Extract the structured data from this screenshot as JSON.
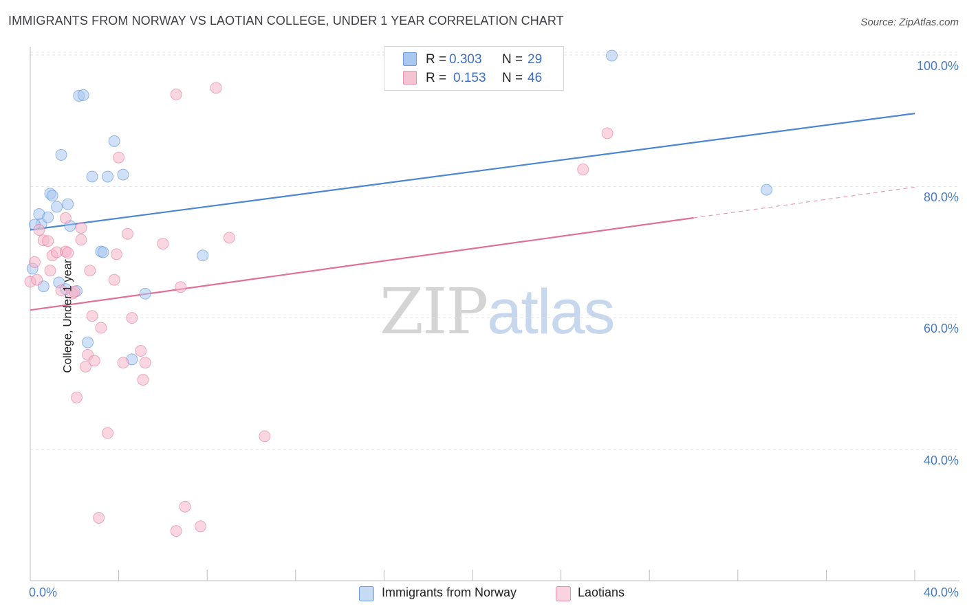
{
  "header": {
    "title": "IMMIGRANTS FROM NORWAY VS LAOTIAN COLLEGE, UNDER 1 YEAR CORRELATION CHART",
    "source": "Source: ZipAtlas.com"
  },
  "watermark": {
    "part1": "ZIP",
    "part2": "atlas"
  },
  "legend": {
    "rows": [
      {
        "r_label": "R =",
        "r_value": "0.303",
        "n_label": "N =",
        "n_value": "29",
        "color": "#a9c8f0"
      },
      {
        "r_label": "R =",
        "r_value": "0.153",
        "n_label": "N =",
        "n_value": "46",
        "color": "#f5b5c8"
      }
    ]
  },
  "bottom_legend": {
    "items": [
      {
        "label": "Immigrants from Norway",
        "color": "#a9c8f0"
      },
      {
        "label": "Laotians",
        "color": "#f5b5c8"
      }
    ]
  },
  "chart_data": {
    "type": "scatter",
    "title": "IMMIGRANTS FROM NORWAY VS LAOTIAN COLLEGE, UNDER 1 YEAR CORRELATION CHART",
    "xlabel": "",
    "ylabel": "College, Under 1 year",
    "xlim": [
      0,
      40
    ],
    "ylim": [
      20,
      102
    ],
    "x_tick_labels": [
      "0.0%",
      "40.0%"
    ],
    "y_ticks": [
      40,
      60,
      80,
      100
    ],
    "y_tick_labels": [
      "40.0%",
      "60.0%",
      "80.0%",
      "100.0%"
    ],
    "grid": true,
    "legend_position": "top-center",
    "series": [
      {
        "name": "Immigrants from Norway",
        "color": "#4a86d4",
        "fill": "#a9c8f0",
        "trend": {
          "x": [
            0,
            40
          ],
          "y": [
            73.4,
            91.1
          ],
          "dashed_from": null
        },
        "points": [
          [
            0.1,
            67.5
          ],
          [
            0.4,
            75.8
          ],
          [
            0.5,
            74.3
          ],
          [
            0.6,
            64.8
          ],
          [
            0.8,
            75.3
          ],
          [
            0.9,
            78.9
          ],
          [
            1.0,
            78.6
          ],
          [
            1.2,
            76.9
          ],
          [
            1.3,
            65.4
          ],
          [
            1.4,
            84.8
          ],
          [
            1.6,
            64.4
          ],
          [
            1.7,
            77.3
          ],
          [
            1.8,
            74.0
          ],
          [
            2.1,
            64.1
          ],
          [
            2.2,
            93.8
          ],
          [
            2.4,
            93.9
          ],
          [
            2.6,
            56.3
          ],
          [
            2.8,
            81.5
          ],
          [
            3.2,
            70.1
          ],
          [
            3.3,
            70.0
          ],
          [
            3.5,
            81.5
          ],
          [
            3.8,
            86.9
          ],
          [
            4.2,
            81.8
          ],
          [
            4.6,
            53.7
          ],
          [
            5.2,
            63.7
          ],
          [
            7.8,
            69.5
          ],
          [
            26.3,
            99.9
          ],
          [
            33.3,
            79.5
          ],
          [
            0.2,
            74.2
          ]
        ]
      },
      {
        "name": "Laotians",
        "color": "#e07098",
        "fill": "#f5b5c8",
        "trend": {
          "x": [
            0,
            40
          ],
          "y": [
            61.2,
            79.9
          ],
          "dashed_from": 30
        },
        "points": [
          [
            0.0,
            65.5
          ],
          [
            0.2,
            68.5
          ],
          [
            0.4,
            73.4
          ],
          [
            0.6,
            71.8
          ],
          [
            0.8,
            71.7
          ],
          [
            0.9,
            67.2
          ],
          [
            1.0,
            69.5
          ],
          [
            1.2,
            70.0
          ],
          [
            1.4,
            64.2
          ],
          [
            1.6,
            70.1
          ],
          [
            1.6,
            75.2
          ],
          [
            1.7,
            69.9
          ],
          [
            1.9,
            63.7
          ],
          [
            2.0,
            64.0
          ],
          [
            2.1,
            47.9
          ],
          [
            2.3,
            73.7
          ],
          [
            2.3,
            71.9
          ],
          [
            2.5,
            52.6
          ],
          [
            2.6,
            54.4
          ],
          [
            2.7,
            67.2
          ],
          [
            2.8,
            60.3
          ],
          [
            2.9,
            53.5
          ],
          [
            3.1,
            29.6
          ],
          [
            3.2,
            58.5
          ],
          [
            3.5,
            42.5
          ],
          [
            3.8,
            65.8
          ],
          [
            3.9,
            69.7
          ],
          [
            4.0,
            84.4
          ],
          [
            4.2,
            53.2
          ],
          [
            4.4,
            72.8
          ],
          [
            4.6,
            60.0
          ],
          [
            5.0,
            55.0
          ],
          [
            5.1,
            50.6
          ],
          [
            5.2,
            53.2
          ],
          [
            6.0,
            71.3
          ],
          [
            6.6,
            27.6
          ],
          [
            6.6,
            94.0
          ],
          [
            6.8,
            64.7
          ],
          [
            7.0,
            31.3
          ],
          [
            7.7,
            28.3
          ],
          [
            8.4,
            95.0
          ],
          [
            9.0,
            72.2
          ],
          [
            10.6,
            42.0
          ],
          [
            25.0,
            82.6
          ],
          [
            26.1,
            88.1
          ],
          [
            0.3,
            65.8
          ]
        ]
      }
    ]
  }
}
